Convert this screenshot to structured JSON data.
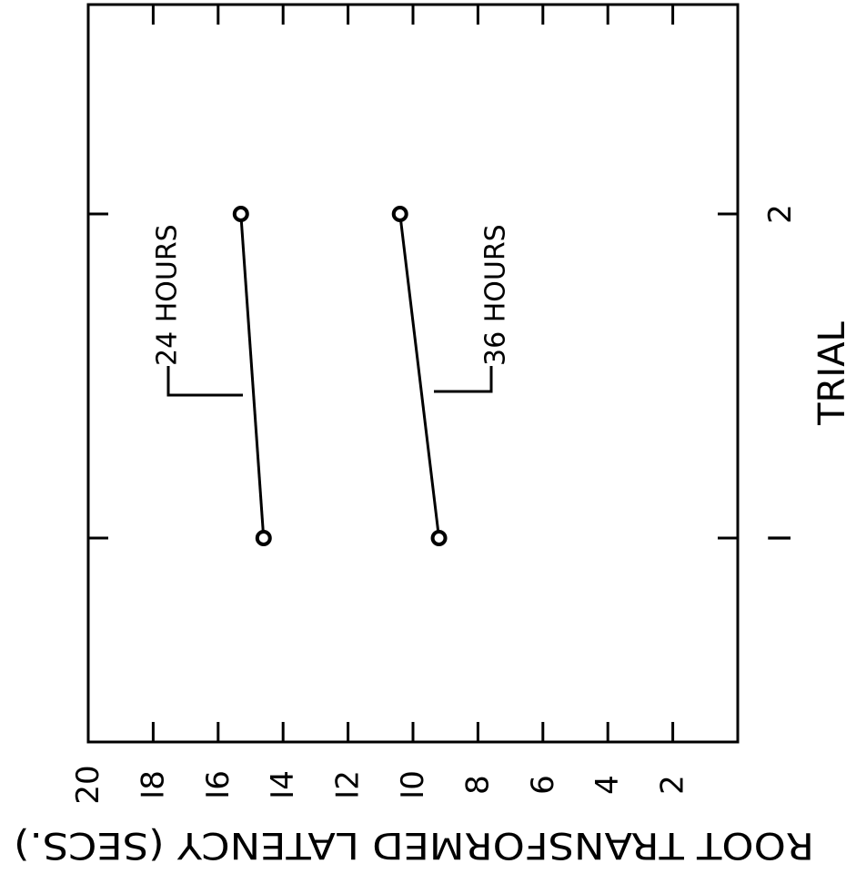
{
  "chart_data": {
    "type": "line",
    "orientation": "rotated-90",
    "xlabel": "TRIAL",
    "ylabel": "ROOT TRANSFORMED LATENCY (SECS.)",
    "categories": [
      "1",
      "2"
    ],
    "x_tick_labels": [
      "I",
      "2"
    ],
    "ylim": [
      0,
      20
    ],
    "y_ticks": [
      20,
      18,
      16,
      14,
      12,
      10,
      8,
      6,
      4,
      2
    ],
    "y_tick_labels": [
      "20",
      "I8",
      "I6",
      "I4",
      "I2",
      "I0",
      "8",
      "6",
      "4",
      "2"
    ],
    "series": [
      {
        "name": "24 HOURS",
        "values": [
          14.6,
          15.3
        ]
      },
      {
        "name": "36 HOURS",
        "values": [
          9.2,
          10.4
        ]
      }
    ],
    "grid": false,
    "marker": "open-circle",
    "line_color": "#000000"
  }
}
